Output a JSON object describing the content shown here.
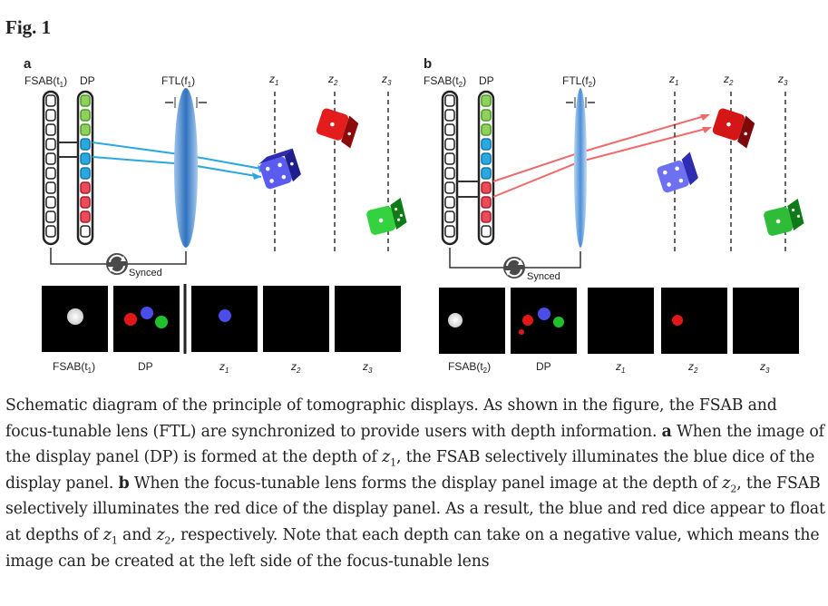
{
  "figure_title": "Fig. 1",
  "panel_a": {
    "letter": "a",
    "fsab_label": "FSAB(t",
    "fsab_sub": "1",
    "dp_label": "DP",
    "ftl_label": "FTL(f",
    "ftl_sub": "1",
    "depths": [
      {
        "z": "z",
        "sub": "1"
      },
      {
        "z": "z",
        "sub": "2"
      },
      {
        "z": "z",
        "sub": "3"
      }
    ],
    "synced_label": "Synced",
    "thumb_labels": [
      {
        "main": "FSAB(t",
        "sub": "1",
        "close": ")"
      },
      {
        "main": "DP",
        "sub": "",
        "close": ""
      },
      {
        "main": "z",
        "sub": "1",
        "close": ""
      },
      {
        "main": "z",
        "sub": "2",
        "close": ""
      },
      {
        "main": "z",
        "sub": "3",
        "close": ""
      }
    ]
  },
  "panel_b": {
    "letter": "b",
    "fsab_label": "FSAB(t",
    "fsab_sub": "2",
    "dp_label": "DP",
    "ftl_label": "FTL(f",
    "ftl_sub": "2",
    "depths": [
      {
        "z": "z",
        "sub": "1"
      },
      {
        "z": "z",
        "sub": "2"
      },
      {
        "z": "z",
        "sub": "3"
      }
    ],
    "synced_label": "Synced",
    "thumb_labels": [
      {
        "main": "FSAB(t",
        "sub": "2",
        "close": ")"
      },
      {
        "main": "DP",
        "sub": "",
        "close": ""
      },
      {
        "main": "z",
        "sub": "1",
        "close": ""
      },
      {
        "main": "z",
        "sub": "2",
        "close": ""
      },
      {
        "main": "z",
        "sub": "3",
        "close": ""
      }
    ]
  },
  "caption": {
    "intro": "Schematic diagram of the principle of tomographic displays. As shown in the figure, the FSAB and focus-tunable lens (FTL) are synchronized to provide users with depth information. ",
    "a_letter": "a",
    "a_text_1": " When the image of the display panel (DP) is formed at the depth of ",
    "a_z": "z",
    "a_z_sub": "1",
    "a_text_2": ", the FSAB selectively illuminates the blue dice of the display panel. ",
    "b_letter": "b",
    "b_text_1": " When the focus-tunable lens forms the display panel image at the depth of ",
    "b_z": "z",
    "b_z_sub": "2",
    "b_text_2": ", the FSAB selectively illuminates the red dice of the display panel. As a result, the blue and red dice appear to float at depths of ",
    "c_z1": "z",
    "c_z1_sub": "1",
    "c_and": " and ",
    "c_z2": "z",
    "c_z2_sub": "2",
    "c_text": ", respectively. Note that each depth can take on a negative value, which means the image can be created at the left side of the focus-tunable lens"
  },
  "colors": {
    "blue_ray": "#29a7df",
    "red_ray": "#ef6b6b",
    "lens": "#3b7fc8",
    "blue_dice": "#3d3fd1",
    "red_dice": "#cc1515",
    "green_dice": "#1fa52a"
  }
}
